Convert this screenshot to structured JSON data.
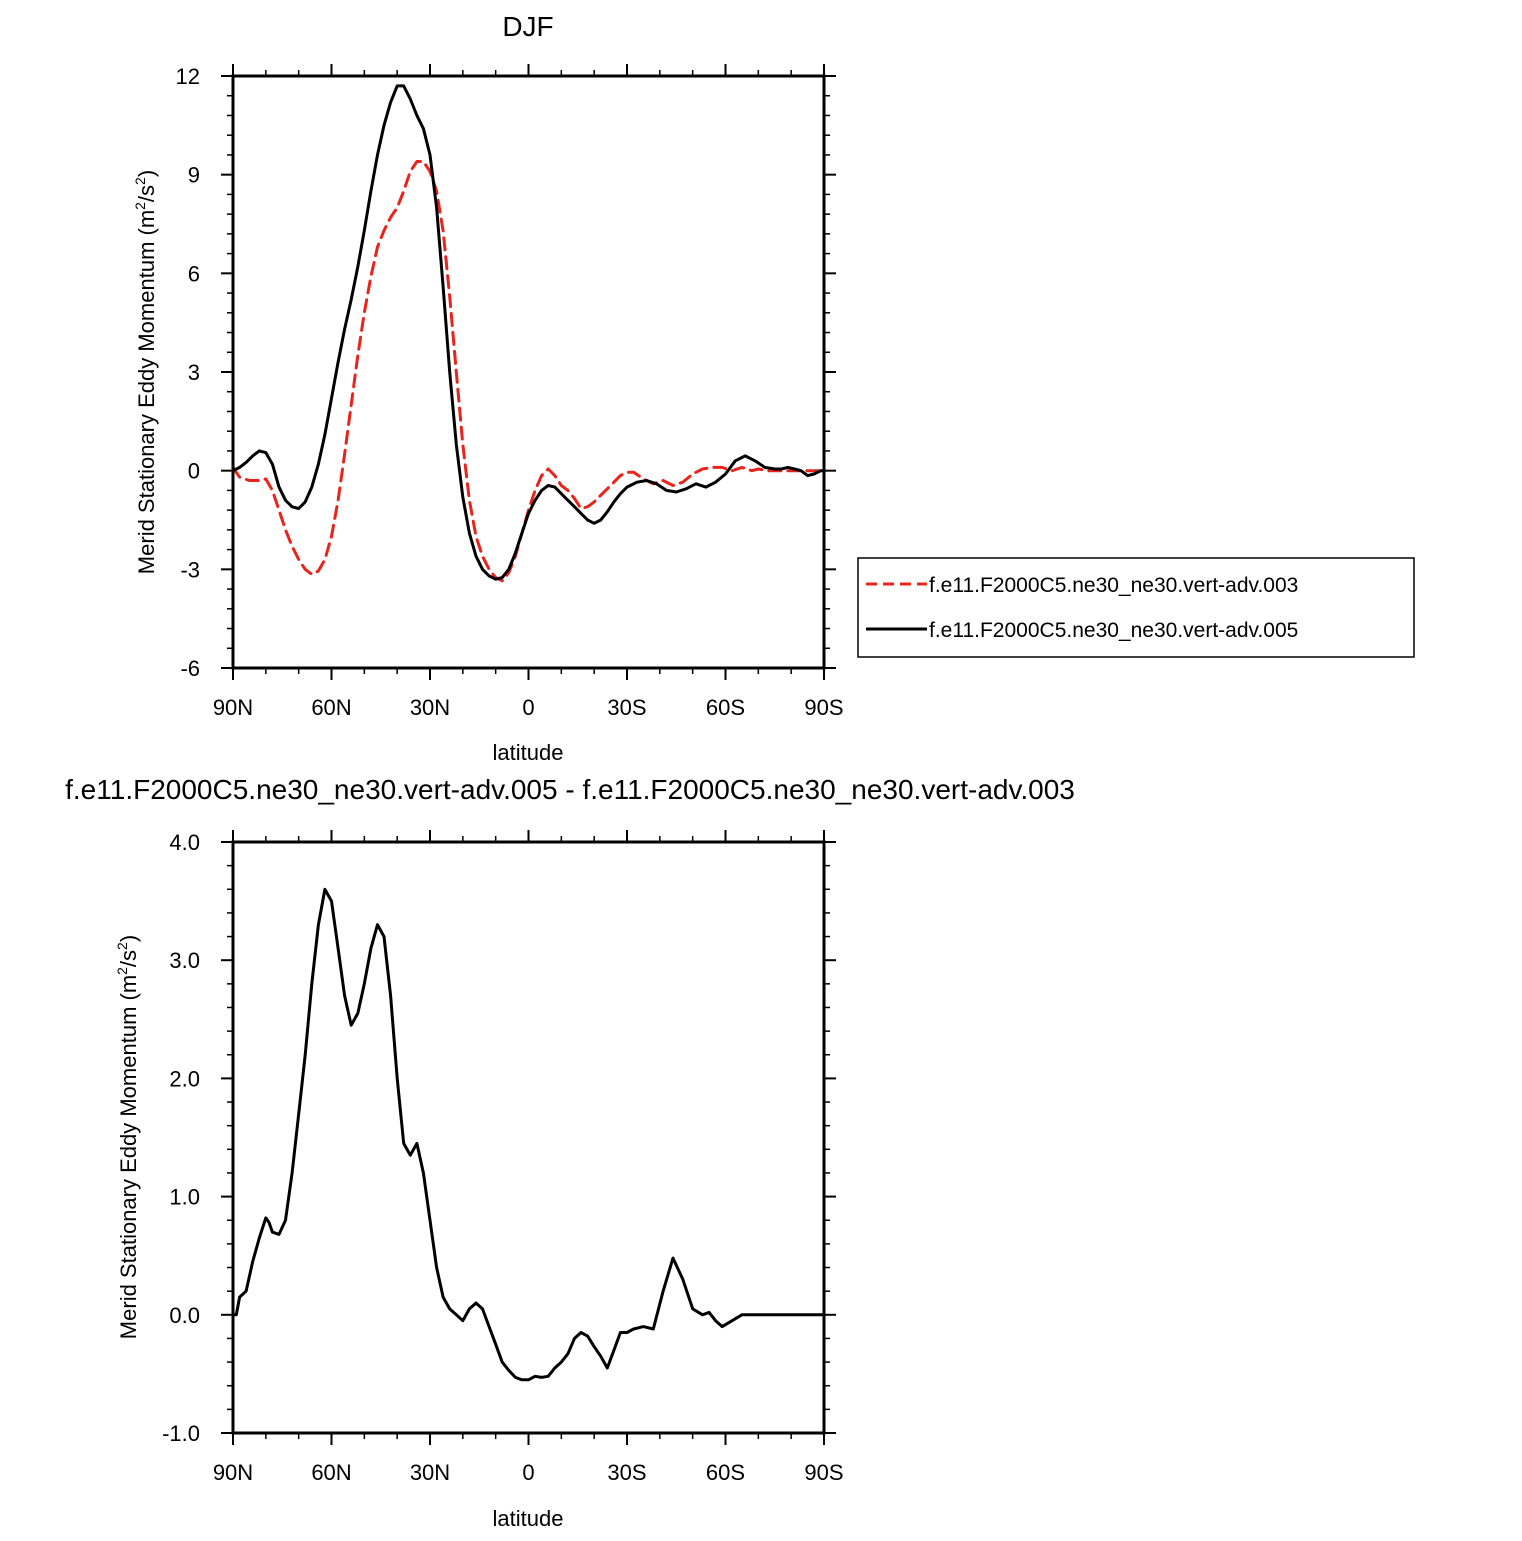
{
  "chart_data": [
    {
      "type": "line",
      "title": "DJF",
      "xlabel": "latitude",
      "ylabel": "Merid Stationary Eddy Momentum (m²/s²)",
      "ylabel_main": "Merid Stationary Eddy Momentum (m",
      "ylabel_sup1": "2",
      "ylabel_mid": "/s",
      "ylabel_sup2": "2",
      "ylabel_end": ")",
      "xlim": [
        90,
        -90
      ],
      "ylim": [
        -6,
        12
      ],
      "xticks": [
        90,
        60,
        30,
        0,
        -30,
        -60,
        -90
      ],
      "xtick_labels": [
        "90N",
        "60N",
        "30N",
        "0",
        "30S",
        "60S",
        "90S"
      ],
      "yticks": [
        -6,
        -3,
        0,
        3,
        6,
        9,
        12
      ],
      "ytick_labels": [
        "-6",
        "-3",
        "0",
        "3",
        "6",
        "9",
        "12"
      ],
      "legend_position": "right",
      "series": [
        {
          "name": "f.e11.F2000C5.ne30_ne30.vert-adv.003",
          "color": "#e8241c",
          "dash": "dashed",
          "x": [
            90,
            88,
            85,
            82,
            80,
            78,
            76,
            74,
            72,
            70,
            68,
            66,
            64,
            62,
            60,
            58,
            56,
            54,
            52,
            50,
            48,
            46,
            44,
            42,
            40,
            38,
            36,
            34,
            32,
            30,
            28,
            26,
            24,
            22,
            20,
            18,
            16,
            14,
            12,
            10,
            8,
            6,
            4,
            2,
            0,
            -2,
            -4,
            -6,
            -8,
            -10,
            -12,
            -14,
            -16,
            -18,
            -20,
            -22,
            -24,
            -26,
            -28,
            -30,
            -32,
            -35,
            -38,
            -41,
            -44,
            -47,
            -50,
            -53,
            -56,
            -59,
            -62,
            -65,
            -68,
            -70,
            -73,
            -76,
            -79,
            -82,
            -85,
            -88,
            -90
          ],
          "y": [
            0.1,
            -0.2,
            -0.3,
            -0.3,
            -0.25,
            -0.6,
            -1.2,
            -1.8,
            -2.3,
            -2.7,
            -3.0,
            -3.15,
            -3.05,
            -2.7,
            -2.0,
            -0.9,
            0.5,
            2.0,
            3.5,
            4.8,
            5.9,
            6.8,
            7.3,
            7.7,
            8.0,
            8.5,
            9.1,
            9.4,
            9.4,
            9.1,
            8.5,
            7.3,
            5.3,
            3.0,
            0.8,
            -0.9,
            -2.0,
            -2.6,
            -3.0,
            -3.25,
            -3.35,
            -3.1,
            -2.6,
            -1.9,
            -1.2,
            -0.6,
            -0.15,
            0.05,
            -0.15,
            -0.45,
            -0.6,
            -0.85,
            -1.15,
            -1.1,
            -0.95,
            -0.75,
            -0.55,
            -0.35,
            -0.15,
            -0.05,
            -0.05,
            -0.25,
            -0.4,
            -0.3,
            -0.45,
            -0.35,
            -0.1,
            0.05,
            0.1,
            0.1,
            0.0,
            0.1,
            0.0,
            0.05,
            0.0,
            0.0,
            0.0,
            0.0,
            0.0,
            0.0,
            0.0
          ]
        },
        {
          "name": "f.e11.F2000C5.ne30_ne30.vert-adv.005",
          "color": "#000000",
          "dash": "solid",
          "x": [
            90,
            88,
            86,
            84,
            82,
            80,
            78,
            76,
            74,
            72,
            70,
            68,
            66,
            64,
            62,
            60,
            58,
            56,
            54,
            52,
            50,
            48,
            46,
            44,
            42,
            40,
            38,
            36,
            34,
            32,
            30,
            28,
            26,
            24,
            22,
            20,
            18,
            16,
            14,
            12,
            10,
            8,
            6,
            4,
            2,
            0,
            -2,
            -4,
            -6,
            -8,
            -10,
            -12,
            -14,
            -16,
            -18,
            -20,
            -22,
            -24,
            -26,
            -28,
            -30,
            -33,
            -36,
            -39,
            -42,
            -45,
            -48,
            -51,
            -54,
            -57,
            -60,
            -63,
            -66,
            -69,
            -72,
            -75,
            -77,
            -79,
            -81,
            -83,
            -85,
            -87,
            -89,
            -90
          ],
          "y": [
            0.0,
            0.1,
            0.25,
            0.45,
            0.6,
            0.55,
            0.2,
            -0.5,
            -0.9,
            -1.1,
            -1.15,
            -0.95,
            -0.5,
            0.2,
            1.1,
            2.2,
            3.3,
            4.3,
            5.2,
            6.2,
            7.3,
            8.5,
            9.6,
            10.5,
            11.2,
            11.7,
            11.7,
            11.3,
            10.8,
            10.4,
            9.6,
            8.0,
            5.6,
            3.0,
            0.8,
            -0.8,
            -1.9,
            -2.6,
            -3.0,
            -3.2,
            -3.3,
            -3.25,
            -3.0,
            -2.5,
            -1.9,
            -1.3,
            -0.9,
            -0.6,
            -0.45,
            -0.5,
            -0.7,
            -0.9,
            -1.1,
            -1.3,
            -1.5,
            -1.6,
            -1.5,
            -1.25,
            -0.95,
            -0.7,
            -0.5,
            -0.35,
            -0.3,
            -0.4,
            -0.6,
            -0.65,
            -0.55,
            -0.4,
            -0.5,
            -0.35,
            -0.1,
            0.3,
            0.45,
            0.3,
            0.1,
            0.05,
            0.05,
            0.1,
            0.05,
            0.0,
            -0.15,
            -0.1,
            0.0,
            0.0
          ]
        }
      ]
    },
    {
      "type": "line",
      "title": "f.e11.F2000C5.ne30_ne30.vert-adv.005 - f.e11.F2000C5.ne30_ne30.vert-adv.003",
      "xlabel": "latitude",
      "ylabel": "Merid Stationary Eddy Momentum (m²/s²)",
      "ylabel_main": "Merid Stationary Eddy Momentum (m",
      "ylabel_sup1": "2",
      "ylabel_mid": "/s",
      "ylabel_sup2": "2",
      "ylabel_end": ")",
      "xlim": [
        90,
        -90
      ],
      "ylim": [
        -1.0,
        4.0
      ],
      "xticks": [
        90,
        60,
        30,
        0,
        -30,
        -60,
        -90
      ],
      "xtick_labels": [
        "90N",
        "60N",
        "30N",
        "0",
        "30S",
        "60S",
        "90S"
      ],
      "yticks": [
        -1.0,
        0.0,
        1.0,
        2.0,
        3.0,
        4.0
      ],
      "ytick_labels": [
        "-1.0",
        "0.0",
        "1.0",
        "2.0",
        "3.0",
        "4.0"
      ],
      "series": [
        {
          "color": "#000000",
          "dash": "solid",
          "x": [
            90,
            89,
            88,
            86,
            84,
            82,
            80,
            79,
            78,
            76,
            74,
            72,
            70,
            68,
            66,
            64,
            62,
            60,
            58,
            56,
            54,
            52,
            50,
            48,
            46,
            44,
            42,
            40,
            38,
            36,
            34,
            32,
            30,
            28,
            26,
            24,
            22,
            20,
            18,
            16,
            14,
            12,
            10,
            8,
            6,
            4,
            2,
            0,
            -2,
            -4,
            -6,
            -8,
            -10,
            -12,
            -14,
            -16,
            -18,
            -20,
            -22,
            -24,
            -26,
            -28,
            -30,
            -32,
            -35,
            -38,
            -41,
            -44,
            -47,
            -50,
            -53,
            -55,
            -57,
            -59,
            -62,
            -65,
            -67,
            -69,
            -71,
            -73,
            -75,
            -77,
            -79,
            -81,
            -83,
            -85,
            -87,
            -89,
            -90
          ],
          "y": [
            0.0,
            0.0,
            0.15,
            0.2,
            0.45,
            0.65,
            0.82,
            0.78,
            0.7,
            0.68,
            0.8,
            1.2,
            1.7,
            2.2,
            2.8,
            3.3,
            3.6,
            3.5,
            3.1,
            2.7,
            2.45,
            2.55,
            2.8,
            3.1,
            3.3,
            3.2,
            2.7,
            2.0,
            1.45,
            1.35,
            1.45,
            1.2,
            0.8,
            0.4,
            0.15,
            0.05,
            0.0,
            -0.05,
            0.05,
            0.1,
            0.05,
            -0.1,
            -0.25,
            -0.4,
            -0.47,
            -0.53,
            -0.55,
            -0.55,
            -0.52,
            -0.53,
            -0.52,
            -0.45,
            -0.4,
            -0.33,
            -0.2,
            -0.15,
            -0.18,
            -0.27,
            -0.35,
            -0.45,
            -0.3,
            -0.15,
            -0.15,
            -0.12,
            -0.1,
            -0.12,
            0.2,
            0.48,
            0.3,
            0.05,
            0.0,
            0.02,
            -0.05,
            -0.1,
            -0.05,
            0.0,
            0.0,
            0.0,
            0.0,
            0.0,
            0.0,
            0.0,
            0.0,
            0.0,
            0.0,
            0.0,
            0.0,
            0.0,
            0.0
          ]
        }
      ]
    }
  ]
}
